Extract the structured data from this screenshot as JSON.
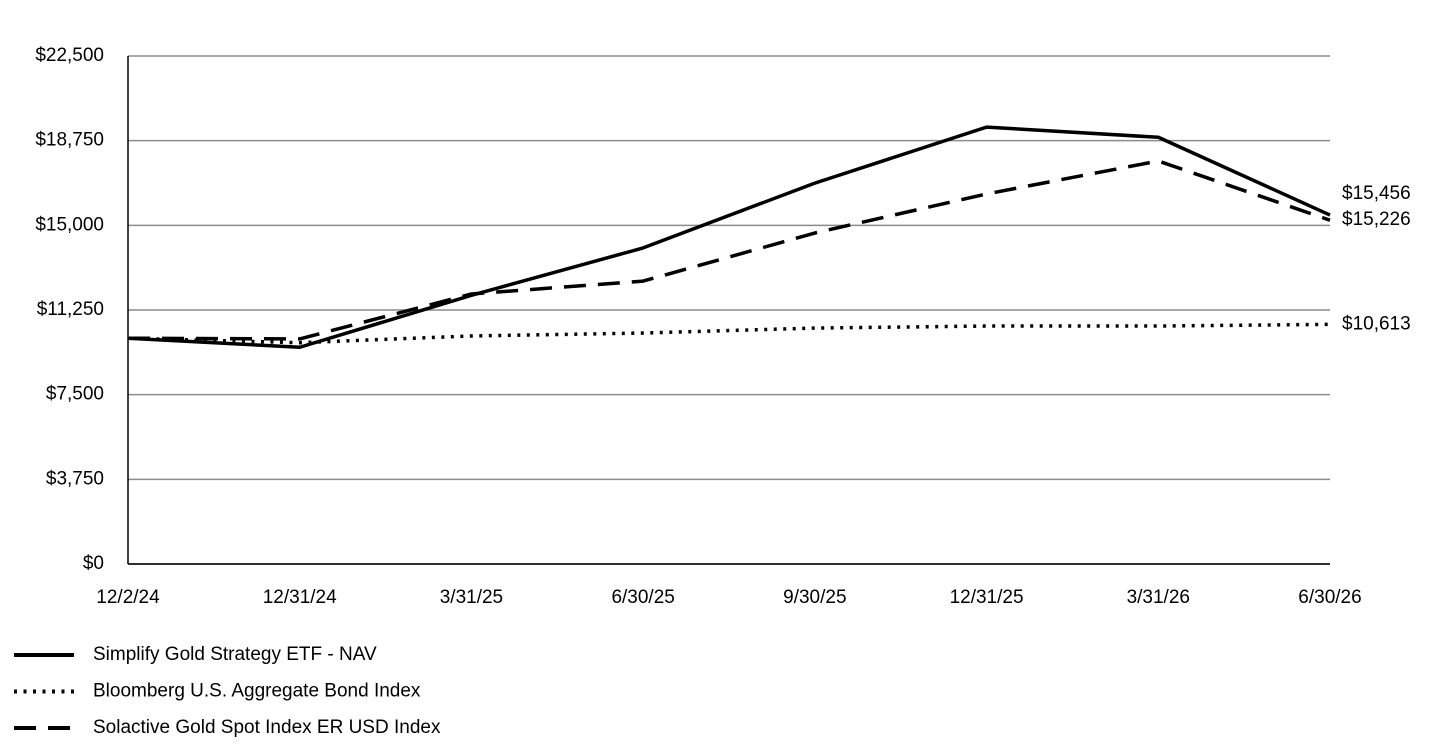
{
  "chart_data": {
    "type": "line",
    "categories": [
      "12/2/24",
      "12/31/24",
      "3/31/25",
      "6/30/25",
      "9/30/25",
      "12/31/25",
      "3/31/26",
      "6/30/26"
    ],
    "series": [
      {
        "name": "Simplify Gold Strategy ETF - NAV",
        "color": "#000000",
        "dash": "solid",
        "values": [
          10000,
          9600,
          11900,
          14000,
          16870,
          19350,
          18900,
          15456
        ],
        "value_labels": [
          null,
          null,
          null,
          null,
          null,
          null,
          null,
          "$15,456"
        ]
      },
      {
        "name": "Bloomberg U.S. Aggregate Bond Index",
        "color": "#000000",
        "dash": "dotted",
        "values": [
          10000,
          9800,
          10100,
          10230,
          10450,
          10540,
          10540,
          10613
        ],
        "value_labels": [
          null,
          null,
          null,
          null,
          null,
          null,
          null,
          "$10,613"
        ]
      },
      {
        "name": "Solactive Gold Spot Index ER USD Index",
        "color": "#000000",
        "dash": "dashed",
        "values": [
          10000,
          9970,
          11960,
          12530,
          14660,
          16390,
          17850,
          15226
        ],
        "value_labels": [
          null,
          null,
          null,
          null,
          null,
          null,
          null,
          "$15,226"
        ]
      }
    ],
    "ylim": [
      0,
      22500
    ],
    "yticks": [
      {
        "value": 0,
        "label": "$0"
      },
      {
        "value": 3750,
        "label": "$3,750"
      },
      {
        "value": 7500,
        "label": "$7,500"
      },
      {
        "value": 11250,
        "label": "$11,250"
      },
      {
        "value": 15000,
        "label": "$15,000"
      },
      {
        "value": 18750,
        "label": "$18,750"
      },
      {
        "value": 22500,
        "label": "$22,500"
      }
    ],
    "grid": true
  }
}
